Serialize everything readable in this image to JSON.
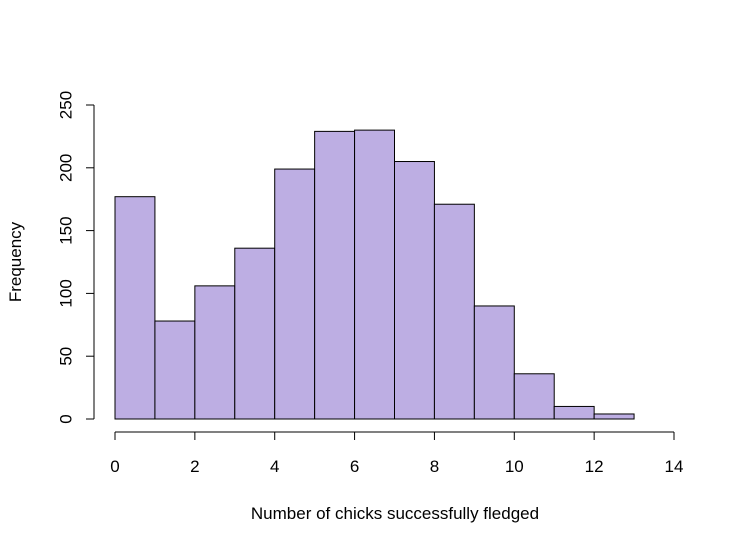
{
  "chart_data": {
    "type": "bar",
    "subtype": "histogram",
    "title": "",
    "xlabel": "Number of chicks successfully fledged",
    "ylabel": "Frequency",
    "bin_edges": [
      0,
      1,
      2,
      3,
      4,
      5,
      6,
      7,
      8,
      9,
      10,
      11,
      12,
      13
    ],
    "values": [
      177,
      78,
      106,
      136,
      199,
      229,
      230,
      205,
      171,
      90,
      36,
      10,
      4
    ],
    "xlim": [
      0,
      14
    ],
    "ylim": [
      0,
      250
    ],
    "x_ticks": [
      0,
      2,
      4,
      6,
      8,
      10,
      12,
      14
    ],
    "y_ticks": [
      0,
      50,
      100,
      150,
      200,
      250
    ],
    "bar_color": "#bdaee3",
    "edge_color": "#000000",
    "grid": false,
    "legend": "none"
  }
}
